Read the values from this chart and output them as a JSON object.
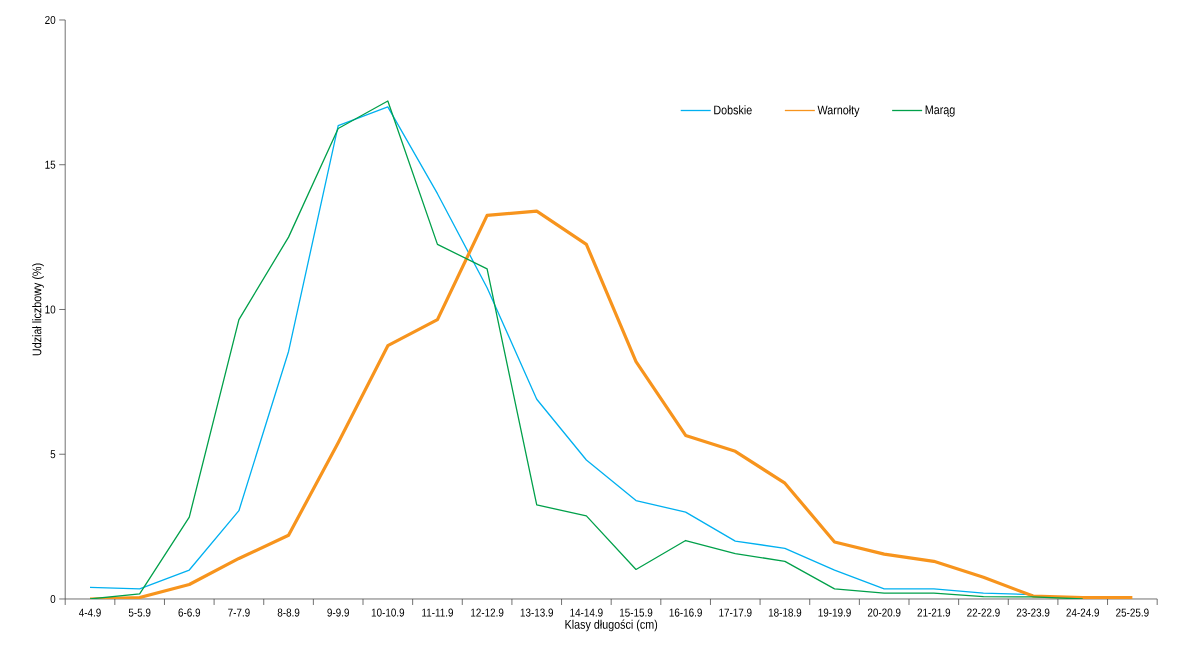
{
  "chart_data": {
    "type": "line",
    "xlabel": "Klasy długości (cm)",
    "ylabel": "Udział liczbowy (%)",
    "categories": [
      "4-4.9",
      "5-5.9",
      "6-6.9",
      "7-7.9",
      "8-8.9",
      "9-9.9",
      "10-10.9",
      "11-11.9",
      "12-12.9",
      "13-13.9",
      "14-14.9",
      "15-15.9",
      "16-16.9",
      "17-17.9",
      "18-18.9",
      "19-19.9",
      "20-20.9",
      "21-21.9",
      "22-22.9",
      "23-23.9",
      "24-24.9",
      "25-25.9"
    ],
    "series": [
      {
        "name": "Dobskie",
        "color": "#00b0f0",
        "values": [
          0.4,
          0.35,
          1.0,
          3.05,
          8.55,
          16.35,
          17.0,
          14.0,
          10.75,
          6.9,
          4.8,
          3.4,
          3.0,
          2.0,
          1.75,
          1.0,
          0.35,
          0.35,
          0.2,
          0.15,
          null,
          null
        ]
      },
      {
        "name": "Warnołty",
        "color": "#f7941d",
        "values": [
          0,
          0.05,
          0.5,
          1.4,
          2.2,
          5.4,
          8.75,
          9.65,
          13.25,
          13.4,
          12.25,
          8.2,
          5.65,
          5.1,
          4.0,
          1.97,
          1.55,
          1.3,
          0.75,
          0.1,
          0.05,
          0.05
        ]
      },
      {
        "name": "Marąg",
        "color": "#00a04a",
        "values": [
          0,
          0.18,
          2.83,
          9.65,
          12.5,
          16.25,
          17.2,
          12.25,
          11.4,
          3.25,
          2.87,
          1.02,
          2.02,
          1.57,
          1.3,
          0.35,
          0.2,
          0.2,
          0.08,
          0.07,
          0,
          null
        ]
      }
    ],
    "ylim": [
      0,
      20
    ],
    "yticks": [
      0,
      5,
      10,
      15,
      20
    ],
    "legend": "top right"
  }
}
